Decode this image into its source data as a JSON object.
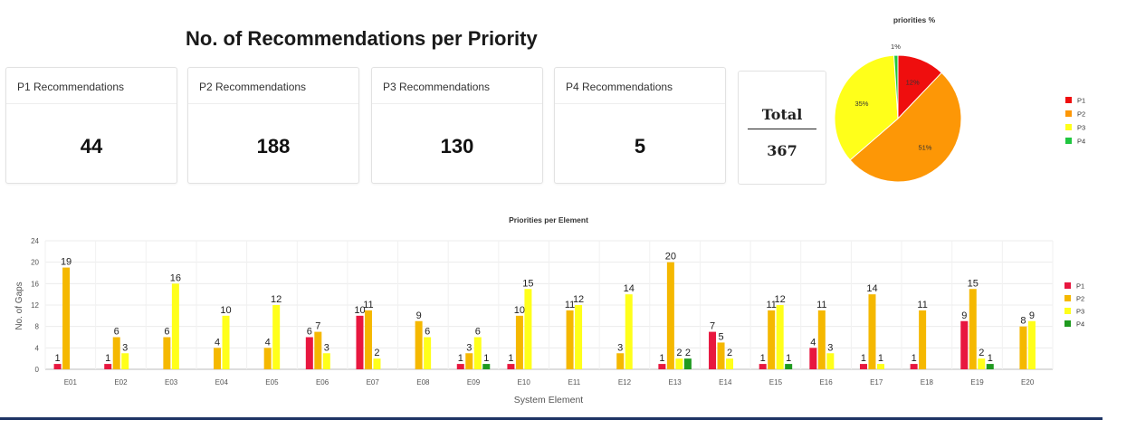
{
  "header": {
    "title": "No. of Recommendations per Priority"
  },
  "cards": [
    {
      "label": "P1 Recommendations",
      "value": "44"
    },
    {
      "label": "P2 Recommendations",
      "value": "188"
    },
    {
      "label": "P3 Recommendations",
      "value": "130"
    },
    {
      "label": "P4 Recommendations",
      "value": "5"
    }
  ],
  "total": {
    "label": "Total",
    "value": "367"
  },
  "colors": {
    "P1": "#e8173f",
    "P2": "#f5b800",
    "P3": "#ffff1a",
    "P4": "#1f9a1f",
    "pie_P1": "#ef0e0e",
    "pie_P2": "#fd9706",
    "pie_P3": "#ffff1a",
    "pie_P4": "#20c640"
  },
  "chart_data": [
    {
      "type": "pie",
      "title": "priorities %",
      "labels": [
        "P1",
        "P2",
        "P3",
        "P4"
      ],
      "values": [
        12,
        51,
        35,
        1
      ],
      "slice_labels": [
        "12%",
        "51%",
        "35%",
        "1%"
      ],
      "legend": "right"
    },
    {
      "type": "bar",
      "title": "Priorities per Element",
      "xlabel": "System Element",
      "ylabel": "No. of Gaps",
      "ylim": [
        0,
        24
      ],
      "yticks": [
        0,
        4,
        8,
        12,
        16,
        20,
        24
      ],
      "grid": true,
      "legend": "right",
      "categories": [
        "E01",
        "E02",
        "E03",
        "E04",
        "E05",
        "E06",
        "E07",
        "E08",
        "E09",
        "E10",
        "E11",
        "E12",
        "E13",
        "E14",
        "E15",
        "E16",
        "E17",
        "E18",
        "E19",
        "E20"
      ],
      "series": [
        {
          "name": "P1",
          "values": [
            1,
            1,
            null,
            null,
            null,
            6,
            10,
            null,
            1,
            1,
            null,
            null,
            1,
            7,
            1,
            4,
            1,
            1,
            9,
            null
          ]
        },
        {
          "name": "P2",
          "values": [
            19,
            6,
            6,
            4,
            4,
            7,
            11,
            9,
            3,
            10,
            11,
            3,
            20,
            5,
            11,
            11,
            14,
            11,
            15,
            8
          ]
        },
        {
          "name": "P3",
          "values": [
            null,
            3,
            16,
            10,
            12,
            3,
            2,
            6,
            6,
            15,
            12,
            14,
            2,
            2,
            12,
            3,
            1,
            null,
            2,
            9
          ]
        },
        {
          "name": "P4",
          "values": [
            null,
            null,
            null,
            null,
            null,
            null,
            null,
            null,
            1,
            null,
            null,
            null,
            2,
            null,
            1,
            null,
            null,
            null,
            1,
            null
          ]
        }
      ]
    }
  ]
}
